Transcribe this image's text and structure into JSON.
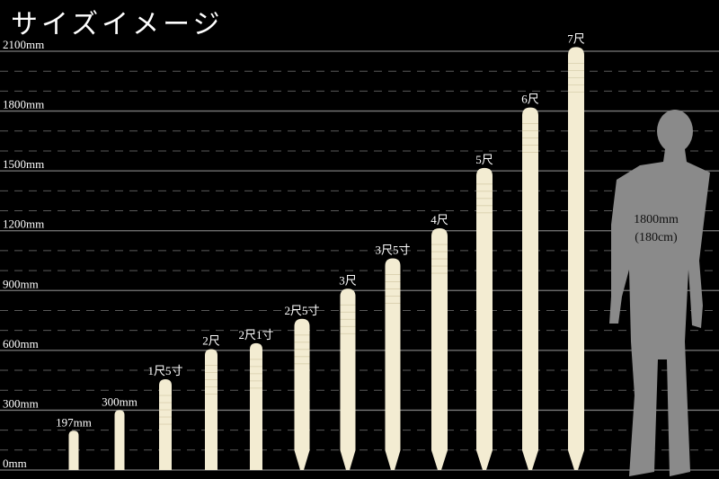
{
  "title": "サイズイメージ",
  "chart_data": {
    "type": "bar",
    "title": "サイズイメージ",
    "ylim": [
      0,
      2100
    ],
    "yticks": [
      0,
      300,
      600,
      900,
      1200,
      1500,
      1800,
      2100
    ],
    "ytick_labels": [
      "0mm",
      "300mm",
      "600mm",
      "900mm",
      "1200mm",
      "1500mm",
      "1800mm",
      "2100mm"
    ],
    "minor_grid_step": 100,
    "grid": true,
    "bar_color": "#f3ecd2",
    "categories": [
      "197mm",
      "300mm",
      "1尺5寸",
      "2尺",
      "2尺1寸",
      "2尺5寸",
      "3尺",
      "3尺5寸",
      "4尺",
      "5尺",
      "6尺",
      "7尺"
    ],
    "values": [
      197,
      300,
      455,
      606,
      636,
      758,
      909,
      1061,
      1212,
      1515,
      1818,
      2121
    ],
    "reference": {
      "label_line1": "1800mm",
      "label_line2": "(180cm)",
      "value": 1800,
      "color": "#8a8a8a"
    }
  }
}
